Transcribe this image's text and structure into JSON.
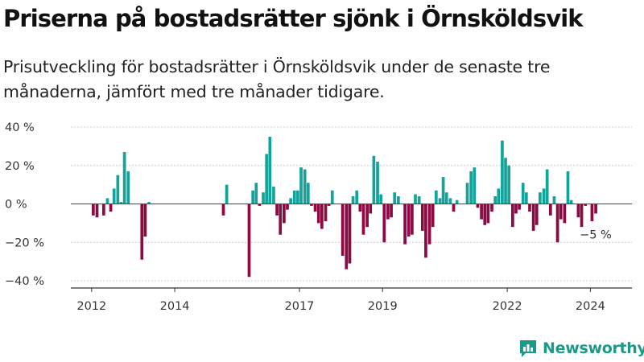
{
  "header": {
    "title": "Priserna på bostadsrätter sjönk i Örnsköldsvik",
    "subtitle": "Prisutveckling för bostadsrätter i Örnsköldsvik under de senaste tre månaderna, jämfört med tre månader tidigare."
  },
  "brand": {
    "name": "Newsworthy",
    "color": "#1b9a8a"
  },
  "colors": {
    "positive": "#14a39a",
    "negative": "#8b0a42",
    "grid": "#cccccc",
    "axis": "#333333"
  },
  "chart_data": {
    "type": "bar",
    "unit": "%",
    "ylim": [
      -40,
      40
    ],
    "y_ticks": [
      {
        "value": 40,
        "label": "40 %"
      },
      {
        "value": 20,
        "label": "20 %"
      },
      {
        "value": 0,
        "label": "0 %"
      },
      {
        "value": -20,
        "label": "−20 %"
      },
      {
        "value": -40,
        "label": "−40 %"
      }
    ],
    "x_range": [
      2011.5,
      2025.0
    ],
    "x_ticks": [
      {
        "value": 2012.0,
        "label": "2012"
      },
      {
        "value": 2014.0,
        "label": "2014"
      },
      {
        "value": 2017.0,
        "label": "2017"
      },
      {
        "value": 2019.0,
        "label": "2019"
      },
      {
        "value": 2022.0,
        "label": "2022"
      },
      {
        "value": 2024.0,
        "label": "2024"
      }
    ],
    "grid": true,
    "legend": "none",
    "last_value_label": "−5 %",
    "points": [
      {
        "t": 2012.04,
        "v": -6
      },
      {
        "t": 2012.13,
        "v": -7
      },
      {
        "t": 2012.29,
        "v": -6
      },
      {
        "t": 2012.38,
        "v": 3
      },
      {
        "t": 2012.46,
        "v": -4
      },
      {
        "t": 2012.54,
        "v": 8
      },
      {
        "t": 2012.63,
        "v": 15
      },
      {
        "t": 2012.71,
        "v": 1
      },
      {
        "t": 2012.79,
        "v": 27
      },
      {
        "t": 2012.88,
        "v": 17
      },
      {
        "t": 2013.21,
        "v": -29
      },
      {
        "t": 2013.29,
        "v": -17
      },
      {
        "t": 2013.38,
        "v": 1
      },
      {
        "t": 2015.17,
        "v": -6
      },
      {
        "t": 2015.25,
        "v": 10
      },
      {
        "t": 2015.79,
        "v": -38
      },
      {
        "t": 2015.88,
        "v": 7
      },
      {
        "t": 2015.96,
        "v": 11
      },
      {
        "t": 2016.04,
        "v": -1
      },
      {
        "t": 2016.13,
        "v": 6
      },
      {
        "t": 2016.21,
        "v": 26
      },
      {
        "t": 2016.29,
        "v": 35
      },
      {
        "t": 2016.38,
        "v": 9
      },
      {
        "t": 2016.46,
        "v": -6
      },
      {
        "t": 2016.54,
        "v": -16
      },
      {
        "t": 2016.63,
        "v": -10
      },
      {
        "t": 2016.71,
        "v": -3
      },
      {
        "t": 2016.79,
        "v": 3
      },
      {
        "t": 2016.88,
        "v": 7
      },
      {
        "t": 2016.96,
        "v": 7
      },
      {
        "t": 2017.04,
        "v": 19
      },
      {
        "t": 2017.13,
        "v": 18
      },
      {
        "t": 2017.21,
        "v": 11
      },
      {
        "t": 2017.29,
        "v": -1
      },
      {
        "t": 2017.38,
        "v": -4
      },
      {
        "t": 2017.46,
        "v": -10
      },
      {
        "t": 2017.54,
        "v": -13
      },
      {
        "t": 2017.63,
        "v": -9
      },
      {
        "t": 2017.71,
        "v": -1
      },
      {
        "t": 2017.79,
        "v": 7
      },
      {
        "t": 2018.04,
        "v": -27
      },
      {
        "t": 2018.13,
        "v": -34
      },
      {
        "t": 2018.21,
        "v": -31
      },
      {
        "t": 2018.29,
        "v": 4
      },
      {
        "t": 2018.38,
        "v": 7
      },
      {
        "t": 2018.46,
        "v": -4
      },
      {
        "t": 2018.54,
        "v": -16
      },
      {
        "t": 2018.63,
        "v": -12
      },
      {
        "t": 2018.71,
        "v": -5
      },
      {
        "t": 2018.79,
        "v": 25
      },
      {
        "t": 2018.88,
        "v": 22
      },
      {
        "t": 2018.96,
        "v": 5
      },
      {
        "t": 2019.04,
        "v": -20
      },
      {
        "t": 2019.13,
        "v": -8
      },
      {
        "t": 2019.21,
        "v": -7
      },
      {
        "t": 2019.29,
        "v": 6
      },
      {
        "t": 2019.38,
        "v": 4
      },
      {
        "t": 2019.54,
        "v": -21
      },
      {
        "t": 2019.63,
        "v": -17
      },
      {
        "t": 2019.71,
        "v": -16
      },
      {
        "t": 2019.79,
        "v": 5
      },
      {
        "t": 2019.88,
        "v": 4
      },
      {
        "t": 2019.96,
        "v": -14
      },
      {
        "t": 2020.04,
        "v": -28
      },
      {
        "t": 2020.13,
        "v": -21
      },
      {
        "t": 2020.21,
        "v": -12
      },
      {
        "t": 2020.29,
        "v": 7
      },
      {
        "t": 2020.38,
        "v": 3
      },
      {
        "t": 2020.46,
        "v": 14
      },
      {
        "t": 2020.54,
        "v": 6
      },
      {
        "t": 2020.63,
        "v": 3
      },
      {
        "t": 2020.71,
        "v": -4
      },
      {
        "t": 2020.79,
        "v": 2
      },
      {
        "t": 2021.04,
        "v": 11
      },
      {
        "t": 2021.13,
        "v": 17
      },
      {
        "t": 2021.21,
        "v": 19
      },
      {
        "t": 2021.29,
        "v": -2
      },
      {
        "t": 2021.38,
        "v": -8
      },
      {
        "t": 2021.46,
        "v": -11
      },
      {
        "t": 2021.54,
        "v": -10
      },
      {
        "t": 2021.63,
        "v": -4
      },
      {
        "t": 2021.71,
        "v": 4
      },
      {
        "t": 2021.79,
        "v": 8
      },
      {
        "t": 2021.88,
        "v": 33
      },
      {
        "t": 2021.96,
        "v": 24
      },
      {
        "t": 2022.04,
        "v": 20
      },
      {
        "t": 2022.13,
        "v": -12
      },
      {
        "t": 2022.21,
        "v": -5
      },
      {
        "t": 2022.29,
        "v": -3
      },
      {
        "t": 2022.38,
        "v": 11
      },
      {
        "t": 2022.46,
        "v": 6
      },
      {
        "t": 2022.54,
        "v": -4
      },
      {
        "t": 2022.63,
        "v": -14
      },
      {
        "t": 2022.71,
        "v": -11
      },
      {
        "t": 2022.79,
        "v": 6
      },
      {
        "t": 2022.88,
        "v": 8
      },
      {
        "t": 2022.96,
        "v": 18
      },
      {
        "t": 2023.04,
        "v": -6
      },
      {
        "t": 2023.13,
        "v": 4
      },
      {
        "t": 2023.21,
        "v": -20
      },
      {
        "t": 2023.29,
        "v": -8
      },
      {
        "t": 2023.38,
        "v": -10
      },
      {
        "t": 2023.46,
        "v": 17
      },
      {
        "t": 2023.54,
        "v": 2
      },
      {
        "t": 2023.71,
        "v": -7
      },
      {
        "t": 2023.79,
        "v": -12
      },
      {
        "t": 2023.88,
        "v": -1
      },
      {
        "t": 2024.04,
        "v": -9
      },
      {
        "t": 2024.13,
        "v": -5
      }
    ]
  }
}
